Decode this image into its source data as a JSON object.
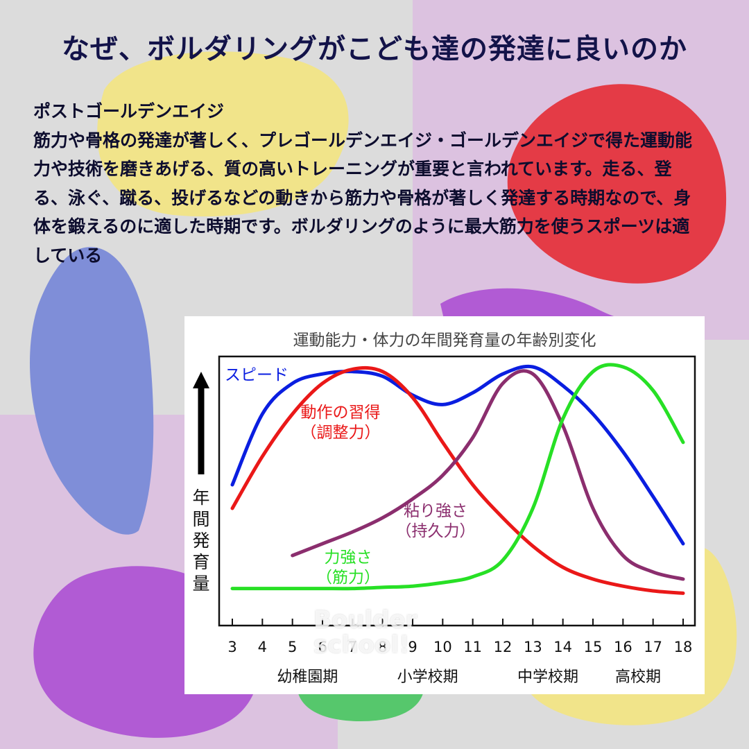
{
  "colors": {
    "background_gray": "#dcdcdc",
    "lilac": "#dcc2e0",
    "yellow": "#f1e48a",
    "red": "#e43b46",
    "blue": "#7f8ed8",
    "purple": "#b15bd4",
    "green": "#56c76c",
    "title": "#131349"
  },
  "title": "なぜ、ボルダリングがこども達の発達に良いのか",
  "body": {
    "heading": "ポストゴールデンエイジ",
    "paragraph": "筋力や骨格の発達が著しく、プレゴールデンエイジ・ゴールデンエイジで得た運動能力や技術を磨きあげる、質の高いトレーニングが重要と言われています。走る、登る、泳ぐ、蹴る、投げるなどの動きから筋力や骨格が著しく発達する時期なので、身体を鍛えるのに適した時期です。ボルダリングのように最大筋力を使うスポーツは適している"
  },
  "watermark": {
    "line1": "Boulder",
    "line2": "school!"
  },
  "chart_data": {
    "type": "line",
    "title": "運動能力・体力の年間発育量の年齢別変化",
    "ylabel": "年間発育量",
    "xlabel": "",
    "x": [
      3,
      4,
      5,
      6,
      7,
      8,
      9,
      10,
      11,
      12,
      13,
      14,
      15,
      16,
      17,
      18
    ],
    "xlim": [
      3,
      18
    ],
    "ylim": [
      0,
      100
    ],
    "grid": false,
    "y_ticks_shown": false,
    "age_periods": [
      {
        "label": "幼稚園期",
        "x_center": 5.5
      },
      {
        "label": "小学校期",
        "x_center": 9.5
      },
      {
        "label": "中学校期",
        "x_center": 13.5
      },
      {
        "label": "高校期",
        "x_center": 16.5
      }
    ],
    "series": [
      {
        "name": "スピード",
        "color": "#0a1ee0",
        "label_lines": [
          "スピード"
        ],
        "x": [
          3,
          4,
          5,
          6,
          7,
          8,
          9,
          10,
          11,
          12,
          13,
          14,
          15,
          16,
          17,
          18
        ],
        "values": [
          50,
          80,
          93,
          97,
          98,
          96,
          88,
          84,
          89,
          97,
          100,
          92,
          80,
          64,
          45,
          25
        ]
      },
      {
        "name": "動作の習得",
        "color": "#ea1818",
        "label_lines": [
          "動作の習得",
          "（調整力）"
        ],
        "x": [
          3,
          4,
          5,
          6,
          7,
          8,
          9,
          10,
          11,
          12,
          13,
          14,
          15,
          16,
          17,
          18
        ],
        "values": [
          40,
          62,
          80,
          93,
          99,
          98,
          87,
          68,
          50,
          36,
          24,
          15,
          10,
          7,
          5,
          4
        ]
      },
      {
        "name": "粘り強さ",
        "color": "#8b2e6e",
        "label_lines": [
          "粘り強さ",
          "（持久力）"
        ],
        "x": [
          5,
          6,
          7,
          8,
          9,
          10,
          11,
          12,
          13,
          14,
          15,
          16,
          17,
          18
        ],
        "values": [
          20,
          25,
          30,
          36,
          44,
          54,
          70,
          93,
          97,
          75,
          40,
          20,
          13,
          10
        ]
      },
      {
        "name": "力強さ",
        "color": "#27e025",
        "label_lines": [
          "力強さ",
          "（筋力）"
        ],
        "x": [
          3,
          4,
          5,
          6,
          7,
          8,
          9,
          10,
          11,
          12,
          13,
          14,
          15,
          16,
          17,
          18
        ],
        "values": [
          6,
          6,
          6,
          6,
          6,
          6.5,
          7,
          8.5,
          11,
          18,
          40,
          78,
          98,
          100,
          90,
          68
        ]
      }
    ]
  }
}
